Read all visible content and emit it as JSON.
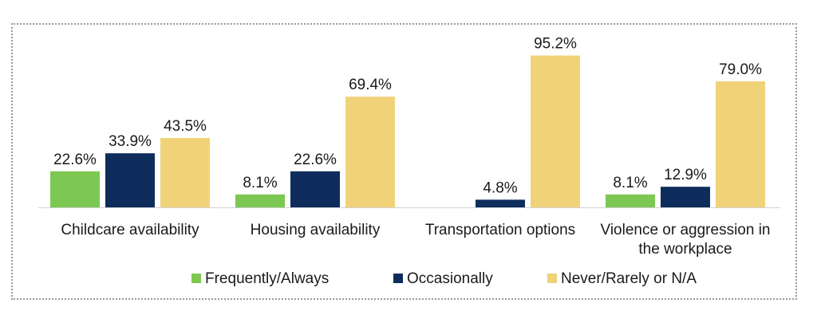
{
  "chart_data": {
    "type": "bar",
    "categories": [
      [
        "Childcare availability"
      ],
      [
        "Housing availability"
      ],
      [
        "Transportation options"
      ],
      [
        "Violence or aggression in",
        "the workplace"
      ]
    ],
    "series": [
      {
        "name": "Frequently/Always",
        "color": "#7dc853",
        "values": [
          22.6,
          8.1,
          null,
          8.1
        ],
        "labels": [
          "22.6%",
          "8.1%",
          "",
          "8.1%"
        ]
      },
      {
        "name": "Occasionally",
        "color": "#0e2d5c",
        "values": [
          33.9,
          22.6,
          4.8,
          12.9
        ],
        "labels": [
          "33.9%",
          "22.6%",
          "4.8%",
          "12.9%"
        ]
      },
      {
        "name": "Never/Rarely or N/A",
        "color": "#f0d279",
        "values": [
          43.5,
          69.4,
          95.2,
          79.0
        ],
        "labels": [
          "43.5%",
          "69.4%",
          "95.2%",
          "79.0%"
        ]
      }
    ],
    "ylim": [
      0,
      100
    ],
    "legend_position": "bottom",
    "grid": false
  }
}
